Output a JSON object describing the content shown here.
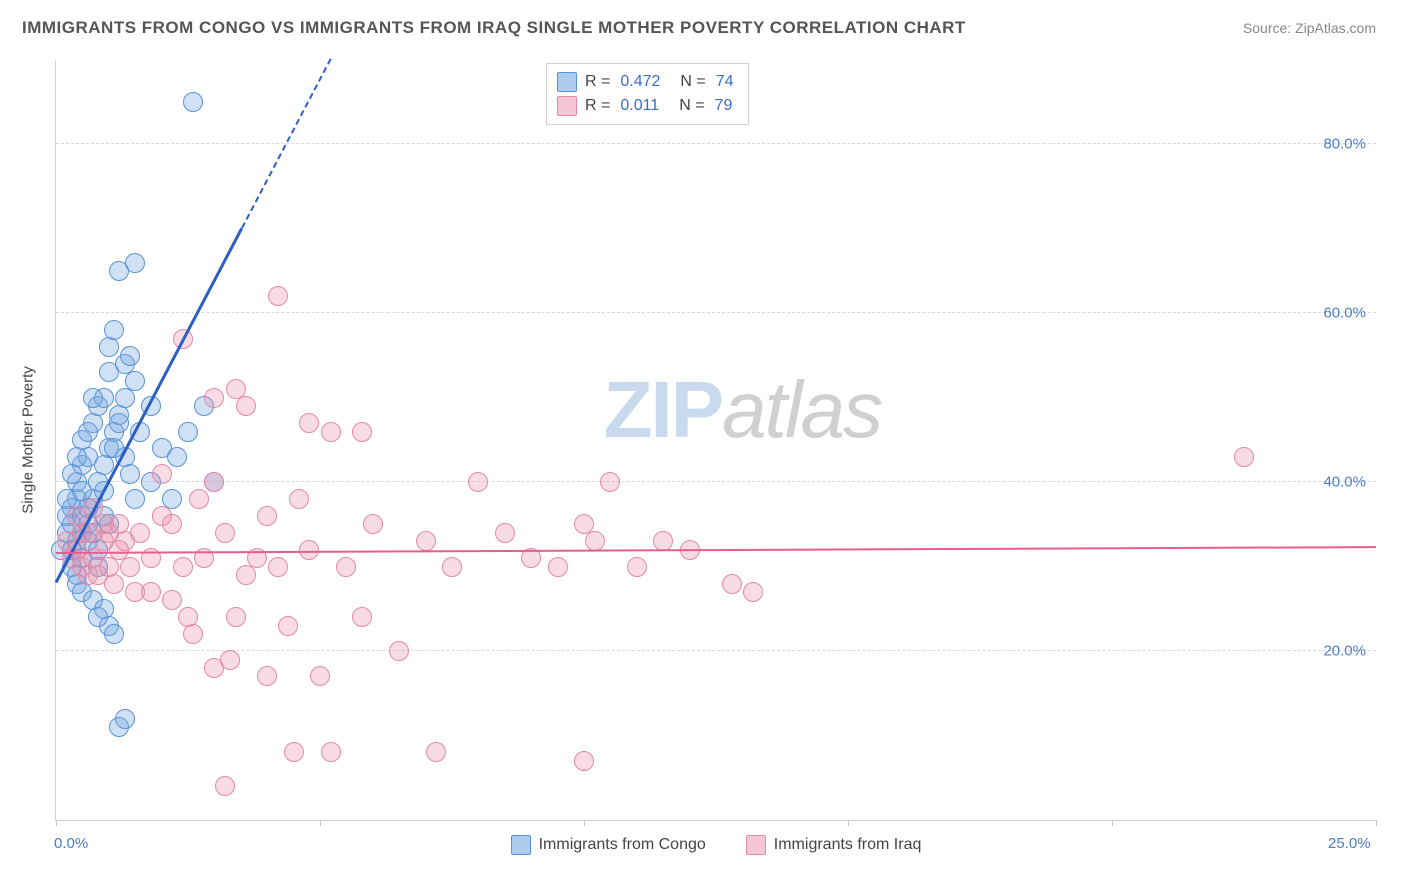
{
  "title": "IMMIGRANTS FROM CONGO VS IMMIGRANTS FROM IRAQ SINGLE MOTHER POVERTY CORRELATION CHART",
  "source_label": "Source:",
  "source_name": "ZipAtlas.com",
  "y_axis_label": "Single Mother Poverty",
  "watermark_a": "ZIP",
  "watermark_b": "atlas",
  "chart": {
    "type": "scatter",
    "xlim": [
      0,
      25
    ],
    "ylim": [
      0,
      90
    ],
    "x_ticks": [
      0,
      5,
      10,
      15,
      20,
      25
    ],
    "x_tick_labels": {
      "0": "0.0%",
      "25": "25.0%"
    },
    "y_gridlines": [
      20,
      40,
      60,
      80
    ],
    "y_tick_labels": {
      "20": "20.0%",
      "40": "40.0%",
      "60": "60.0%",
      "80": "80.0%"
    },
    "background_color": "#ffffff",
    "grid_color": "#d8d8d8",
    "marker_radius": 9,
    "marker_stroke_width": 1.2,
    "series": [
      {
        "key": "congo",
        "label": "Immigrants from Congo",
        "fill": "rgba(120,170,225,0.35)",
        "stroke": "#5a94d6",
        "swatch_fill": "#aecdee",
        "swatch_stroke": "#5a94d6",
        "R": "0.472",
        "N": "74",
        "trend": {
          "x1": 0,
          "y1": 28,
          "x2": 5.2,
          "y2": 90,
          "color": "#2b5fc1",
          "width": 3,
          "dash_extend_to_x": 5.2
        },
        "points": [
          [
            0.1,
            32
          ],
          [
            0.2,
            34
          ],
          [
            0.3,
            30
          ],
          [
            0.2,
            36
          ],
          [
            0.4,
            33
          ],
          [
            0.3,
            35
          ],
          [
            0.5,
            34
          ],
          [
            0.4,
            38
          ],
          [
            0.3,
            37
          ],
          [
            0.5,
            36
          ],
          [
            0.4,
            40
          ],
          [
            0.6,
            35
          ],
          [
            0.5,
            42
          ],
          [
            0.7,
            38
          ],
          [
            0.6,
            43
          ],
          [
            0.8,
            40
          ],
          [
            0.5,
            45
          ],
          [
            0.9,
            42
          ],
          [
            0.7,
            47
          ],
          [
            1.0,
            44
          ],
          [
            0.8,
            49
          ],
          [
            1.1,
            46
          ],
          [
            0.9,
            50
          ],
          [
            1.2,
            48
          ],
          [
            1.0,
            53
          ],
          [
            1.3,
            50
          ],
          [
            1.1,
            44
          ],
          [
            1.4,
            41
          ],
          [
            1.2,
            47
          ],
          [
            1.0,
            56
          ],
          [
            1.3,
            54
          ],
          [
            1.5,
            52
          ],
          [
            1.1,
            58
          ],
          [
            1.4,
            55
          ],
          [
            1.2,
            65
          ],
          [
            1.5,
            66
          ],
          [
            1.3,
            43
          ],
          [
            1.6,
            46
          ],
          [
            1.5,
            38
          ],
          [
            1.8,
            40
          ],
          [
            2.0,
            44
          ],
          [
            2.2,
            38
          ],
          [
            1.8,
            49
          ],
          [
            2.3,
            43
          ],
          [
            2.5,
            46
          ],
          [
            2.8,
            49
          ],
          [
            3.0,
            40
          ],
          [
            2.6,
            85
          ],
          [
            0.3,
            32
          ],
          [
            0.4,
            29
          ],
          [
            0.5,
            31
          ],
          [
            0.6,
            33
          ],
          [
            0.4,
            28
          ],
          [
            0.8,
            32
          ],
          [
            0.7,
            34
          ],
          [
            0.9,
            36
          ],
          [
            1.0,
            35
          ],
          [
            0.8,
            30
          ],
          [
            0.6,
            46
          ],
          [
            0.7,
            50
          ],
          [
            0.2,
            38
          ],
          [
            0.3,
            41
          ],
          [
            0.5,
            39
          ],
          [
            0.4,
            43
          ],
          [
            0.5,
            27
          ],
          [
            0.7,
            26
          ],
          [
            0.9,
            25
          ],
          [
            1.0,
            23
          ],
          [
            1.2,
            11
          ],
          [
            1.3,
            12
          ],
          [
            1.1,
            22
          ],
          [
            0.8,
            24
          ],
          [
            0.6,
            37
          ],
          [
            0.9,
            39
          ]
        ]
      },
      {
        "key": "iraq",
        "label": "Immigrants from Iraq",
        "fill": "rgba(235,135,165,0.30)",
        "stroke": "#e589a8",
        "swatch_fill": "#f4c6d6",
        "swatch_stroke": "#e589a8",
        "R": "0.011",
        "N": "79",
        "trend": {
          "x1": 0,
          "y1": 31.5,
          "x2": 25,
          "y2": 32.2,
          "color": "#e75d8f",
          "width": 2.5
        },
        "points": [
          [
            0.2,
            33
          ],
          [
            0.4,
            32
          ],
          [
            0.5,
            30
          ],
          [
            0.6,
            34
          ],
          [
            0.7,
            31
          ],
          [
            0.8,
            29
          ],
          [
            0.9,
            33
          ],
          [
            1.0,
            30
          ],
          [
            1.1,
            28
          ],
          [
            1.2,
            35
          ],
          [
            1.3,
            33
          ],
          [
            1.4,
            30
          ],
          [
            1.5,
            27
          ],
          [
            1.6,
            34
          ],
          [
            1.8,
            31
          ],
          [
            2.0,
            36
          ],
          [
            2.2,
            35
          ],
          [
            2.4,
            30
          ],
          [
            2.5,
            24
          ],
          [
            2.7,
            38
          ],
          [
            2.8,
            31
          ],
          [
            3.0,
            40
          ],
          [
            3.2,
            34
          ],
          [
            3.3,
            19
          ],
          [
            3.4,
            24
          ],
          [
            3.6,
            29
          ],
          [
            3.8,
            31
          ],
          [
            4.0,
            36
          ],
          [
            4.2,
            30
          ],
          [
            4.4,
            23
          ],
          [
            4.6,
            38
          ],
          [
            4.8,
            32
          ],
          [
            5.0,
            17
          ],
          [
            5.2,
            46
          ],
          [
            5.5,
            30
          ],
          [
            5.8,
            24
          ],
          [
            6.0,
            35
          ],
          [
            6.5,
            20
          ],
          [
            7.0,
            33
          ],
          [
            7.2,
            8
          ],
          [
            7.5,
            30
          ],
          [
            8.0,
            40
          ],
          [
            8.5,
            34
          ],
          [
            9.0,
            31
          ],
          [
            9.5,
            30
          ],
          [
            10.0,
            7
          ],
          [
            10.0,
            35
          ],
          [
            10.2,
            33
          ],
          [
            10.5,
            40
          ],
          [
            11.0,
            30
          ],
          [
            11.5,
            33
          ],
          [
            12.0,
            32
          ],
          [
            12.8,
            28
          ],
          [
            13.2,
            27
          ],
          [
            22.5,
            43
          ],
          [
            2.0,
            41
          ],
          [
            2.4,
            57
          ],
          [
            3.0,
            50
          ],
          [
            3.4,
            51
          ],
          [
            3.6,
            49
          ],
          [
            4.2,
            62
          ],
          [
            4.8,
            47
          ],
          [
            5.8,
            46
          ],
          [
            0.4,
            36
          ],
          [
            0.5,
            34
          ],
          [
            0.7,
            37
          ],
          [
            0.9,
            35
          ],
          [
            1.0,
            34
          ],
          [
            1.2,
            32
          ],
          [
            0.3,
            31
          ],
          [
            0.6,
            29
          ],
          [
            1.8,
            27
          ],
          [
            2.2,
            26
          ],
          [
            2.6,
            22
          ],
          [
            3.0,
            18
          ],
          [
            3.2,
            4
          ],
          [
            4.0,
            17
          ],
          [
            4.5,
            8
          ],
          [
            5.2,
            8
          ]
        ]
      }
    ]
  },
  "legend_bottom": [
    {
      "series_key": "congo"
    },
    {
      "series_key": "iraq"
    }
  ]
}
